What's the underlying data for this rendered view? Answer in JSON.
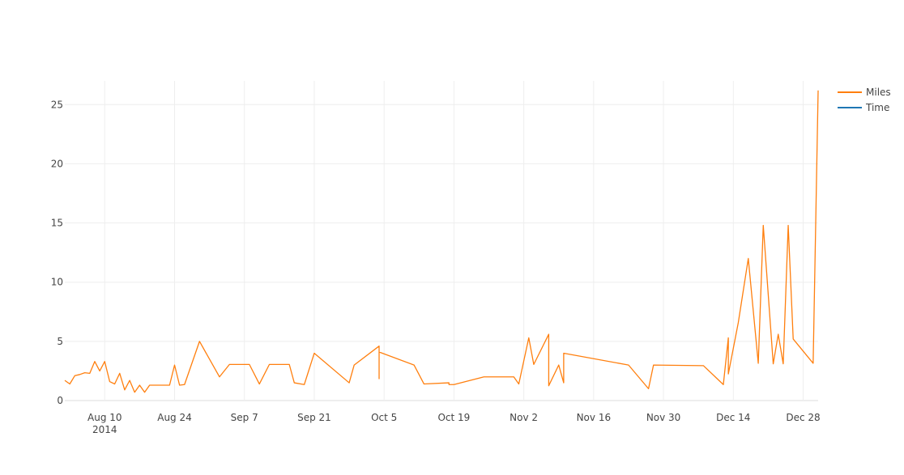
{
  "chart_data": {
    "type": "line",
    "title": "",
    "xlabel": "",
    "ylabel": "",
    "x_range": [
      "2014-08-02",
      "2014-12-31"
    ],
    "ylim": [
      0,
      27
    ],
    "x_tick_values": [
      "2014-08-10",
      "2014-08-24",
      "2014-09-07",
      "2014-09-21",
      "2014-10-05",
      "2014-10-19",
      "2014-11-02",
      "2014-11-16",
      "2014-11-30",
      "2014-12-14",
      "2014-12-28"
    ],
    "x_tick_labels": [
      "Aug 10",
      "Aug 24",
      "Sep 7",
      "Sep 21",
      "Oct 5",
      "Oct 19",
      "Nov 2",
      "Nov 16",
      "Nov 30",
      "Dec 14",
      "Dec 28"
    ],
    "x_tick_sublabel": "2014",
    "y_ticks": [
      0,
      5,
      10,
      15,
      20,
      25
    ],
    "y_tick_labels": [
      "0",
      "5",
      "10",
      "15",
      "20",
      "25"
    ],
    "grid": true,
    "legend_position": "top-right",
    "series": [
      {
        "name": "Miles",
        "color": "#ff7f0e",
        "points": [
          [
            "2014-08-02",
            1.7
          ],
          [
            "2014-08-03",
            1.4
          ],
          [
            "2014-08-04",
            2.1
          ],
          [
            "2014-08-05",
            2.2
          ],
          [
            "2014-08-06",
            2.35
          ],
          [
            "2014-08-07",
            2.3
          ],
          [
            "2014-08-08",
            3.3
          ],
          [
            "2014-08-09",
            2.5
          ],
          [
            "2014-08-10",
            3.3
          ],
          [
            "2014-08-11",
            1.6
          ],
          [
            "2014-08-12",
            1.4
          ],
          [
            "2014-08-13",
            2.3
          ],
          [
            "2014-08-14",
            0.9
          ],
          [
            "2014-08-15",
            1.7
          ],
          [
            "2014-08-16",
            0.7
          ],
          [
            "2014-08-17",
            1.3
          ],
          [
            "2014-08-18",
            0.7
          ],
          [
            "2014-08-19",
            1.3
          ],
          [
            "2014-08-23",
            1.3
          ],
          [
            "2014-08-24",
            3.0
          ],
          [
            "2014-08-25",
            1.3
          ],
          [
            "2014-08-26",
            1.35
          ],
          [
            "2014-08-29",
            5.0
          ],
          [
            "2014-09-02",
            2.0
          ],
          [
            "2014-09-04",
            3.05
          ],
          [
            "2014-09-08",
            3.05
          ],
          [
            "2014-09-10",
            1.4
          ],
          [
            "2014-09-12",
            3.05
          ],
          [
            "2014-09-16",
            3.05
          ],
          [
            "2014-09-17",
            1.5
          ],
          [
            "2014-09-19",
            1.35
          ],
          [
            "2014-09-21",
            4.0
          ],
          [
            "2014-09-28",
            1.5
          ],
          [
            "2014-09-29",
            3.0
          ],
          [
            "2014-10-04",
            4.6
          ],
          [
            "2014-10-04",
            1.85
          ],
          [
            "2014-10-04",
            4.1
          ],
          [
            "2014-10-11",
            3.0
          ],
          [
            "2014-10-13",
            1.4
          ],
          [
            "2014-10-18",
            1.5
          ],
          [
            "2014-10-18",
            1.35
          ],
          [
            "2014-10-19",
            1.35
          ],
          [
            "2014-10-25",
            2.0
          ],
          [
            "2014-10-31",
            2.0
          ],
          [
            "2014-11-01",
            1.4
          ],
          [
            "2014-11-03",
            5.3
          ],
          [
            "2014-11-04",
            3.05
          ],
          [
            "2014-11-07",
            5.6
          ],
          [
            "2014-11-07",
            1.25
          ],
          [
            "2014-11-09",
            3.0
          ],
          [
            "2014-11-10",
            1.5
          ],
          [
            "2014-11-10",
            4.0
          ],
          [
            "2014-11-23",
            3.0
          ],
          [
            "2014-11-27",
            1.0
          ],
          [
            "2014-11-28",
            3.0
          ],
          [
            "2014-12-08",
            2.95
          ],
          [
            "2014-12-12",
            1.35
          ],
          [
            "2014-12-13",
            5.3
          ],
          [
            "2014-12-13",
            2.25
          ],
          [
            "2014-12-15",
            6.6
          ],
          [
            "2014-12-17",
            12.0
          ],
          [
            "2014-12-19",
            3.15
          ],
          [
            "2014-12-20",
            14.8
          ],
          [
            "2014-12-22",
            3.1
          ],
          [
            "2014-12-23",
            5.6
          ],
          [
            "2014-12-24",
            3.1
          ],
          [
            "2014-12-25",
            14.8
          ],
          [
            "2014-12-26",
            5.2
          ],
          [
            "2014-12-30",
            3.15
          ],
          [
            "2014-12-31",
            26.2
          ]
        ]
      },
      {
        "name": "Time",
        "color": "#1f77b4",
        "points": []
      }
    ]
  }
}
